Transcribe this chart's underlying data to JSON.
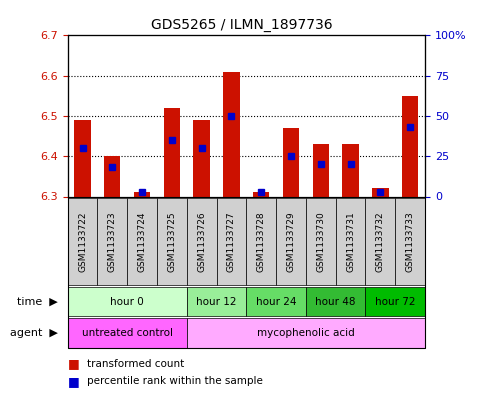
{
  "title": "GDS5265 / ILMN_1897736",
  "samples": [
    "GSM1133722",
    "GSM1133723",
    "GSM1133724",
    "GSM1133725",
    "GSM1133726",
    "GSM1133727",
    "GSM1133728",
    "GSM1133729",
    "GSM1133730",
    "GSM1133731",
    "GSM1133732",
    "GSM1133733"
  ],
  "transformed_counts": [
    6.49,
    6.4,
    6.31,
    6.52,
    6.49,
    6.61,
    6.31,
    6.47,
    6.43,
    6.43,
    6.32,
    6.55
  ],
  "percentile_ranks": [
    30,
    18,
    3,
    35,
    30,
    50,
    3,
    25,
    20,
    20,
    3,
    43
  ],
  "ymin": 6.3,
  "ymax": 6.7,
  "yticks": [
    6.3,
    6.4,
    6.5,
    6.6,
    6.7
  ],
  "y2ticks": [
    0,
    25,
    50,
    75,
    100
  ],
  "y2labels": [
    "0",
    "25",
    "50",
    "75",
    "100%"
  ],
  "bar_color": "#cc1100",
  "blue_color": "#0000cc",
  "bar_baseline": 6.3,
  "time_groups": [
    {
      "label": "hour 0",
      "start": 0,
      "end": 4,
      "color": "#ccffcc"
    },
    {
      "label": "hour 12",
      "start": 4,
      "end": 6,
      "color": "#99ee99"
    },
    {
      "label": "hour 24",
      "start": 6,
      "end": 8,
      "color": "#66dd66"
    },
    {
      "label": "hour 48",
      "start": 8,
      "end": 10,
      "color": "#33bb33"
    },
    {
      "label": "hour 72",
      "start": 10,
      "end": 12,
      "color": "#00bb00"
    }
  ],
  "agent_groups": [
    {
      "label": "untreated control",
      "start": 0,
      "end": 4,
      "color": "#ff66ff"
    },
    {
      "label": "mycophenolic acid",
      "start": 4,
      "end": 12,
      "color": "#ffaaff"
    }
  ],
  "bg_color": "#ffffff",
  "plot_bg": "#ffffff",
  "tick_label_color_left": "#cc1100",
  "tick_label_color_right": "#0000cc"
}
